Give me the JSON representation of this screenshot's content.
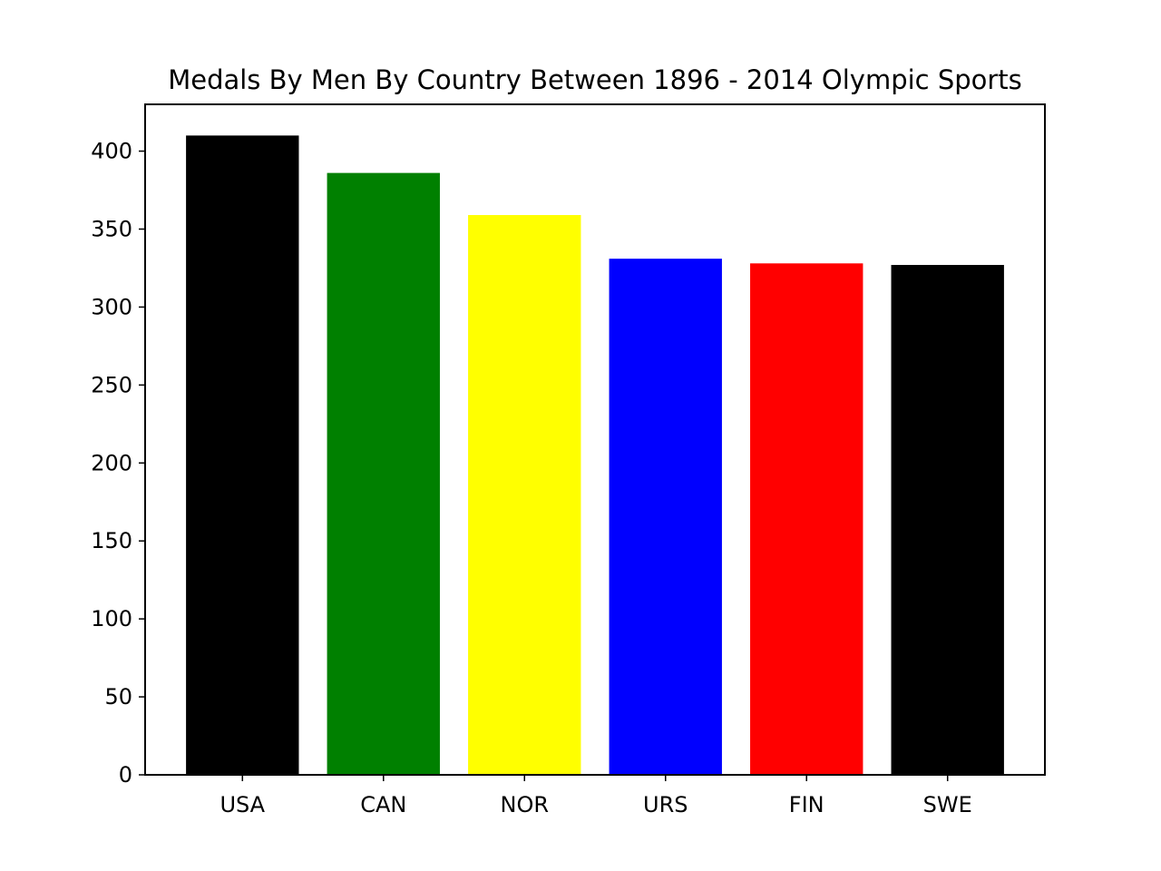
{
  "chart_data": {
    "type": "bar",
    "title": "Medals By Men By Country Between 1896 - 2014 Olympic Sports",
    "xlabel": "",
    "ylabel": "",
    "categories": [
      "USA",
      "CAN",
      "NOR",
      "URS",
      "FIN",
      "SWE"
    ],
    "values": [
      410,
      386,
      359,
      331,
      328,
      327
    ],
    "colors": [
      "#000000",
      "#008000",
      "#ffff00",
      "#0000ff",
      "#ff0000",
      "#000000"
    ],
    "ylim": [
      0,
      430
    ],
    "yticks": [
      0,
      50,
      100,
      150,
      200,
      250,
      300,
      350,
      400
    ],
    "grid": false,
    "legend": "none"
  }
}
